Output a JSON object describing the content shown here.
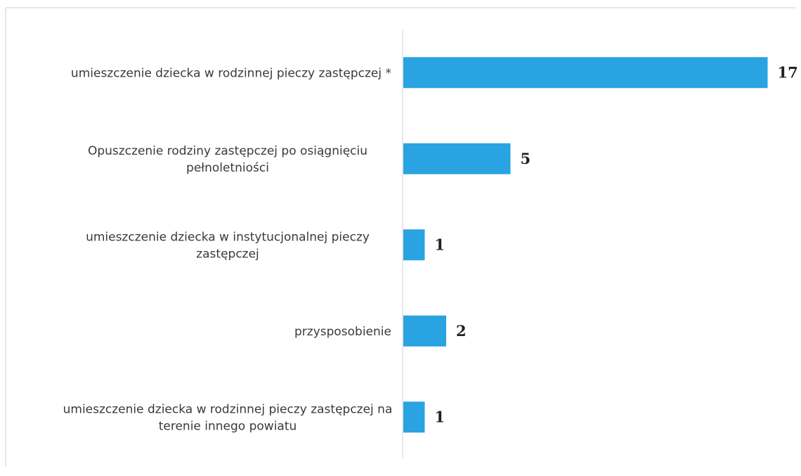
{
  "chart_data": {
    "type": "bar",
    "orientation": "horizontal",
    "categories": [
      [
        "umieszczenie dziecka w rodzinnej pieczy zastępczej *"
      ],
      [
        "Opuszczenie rodziny zastępczej po osiągnięciu",
        "pełnoletniości"
      ],
      [
        "umieszczenie dziecka w instytucjonalnej pieczy",
        "zastępczej"
      ],
      [
        "przysposobienie"
      ],
      [
        "umieszczenie dziecka w rodzinnej pieczy zastępczej na",
        "terenie innego powiatu"
      ]
    ],
    "values": [
      17,
      5,
      1,
      2,
      1
    ],
    "data_labels": [
      "17",
      "5",
      "1",
      "2",
      "1"
    ],
    "bar_color": "#29a3e2",
    "grid": false,
    "legend": "none"
  }
}
